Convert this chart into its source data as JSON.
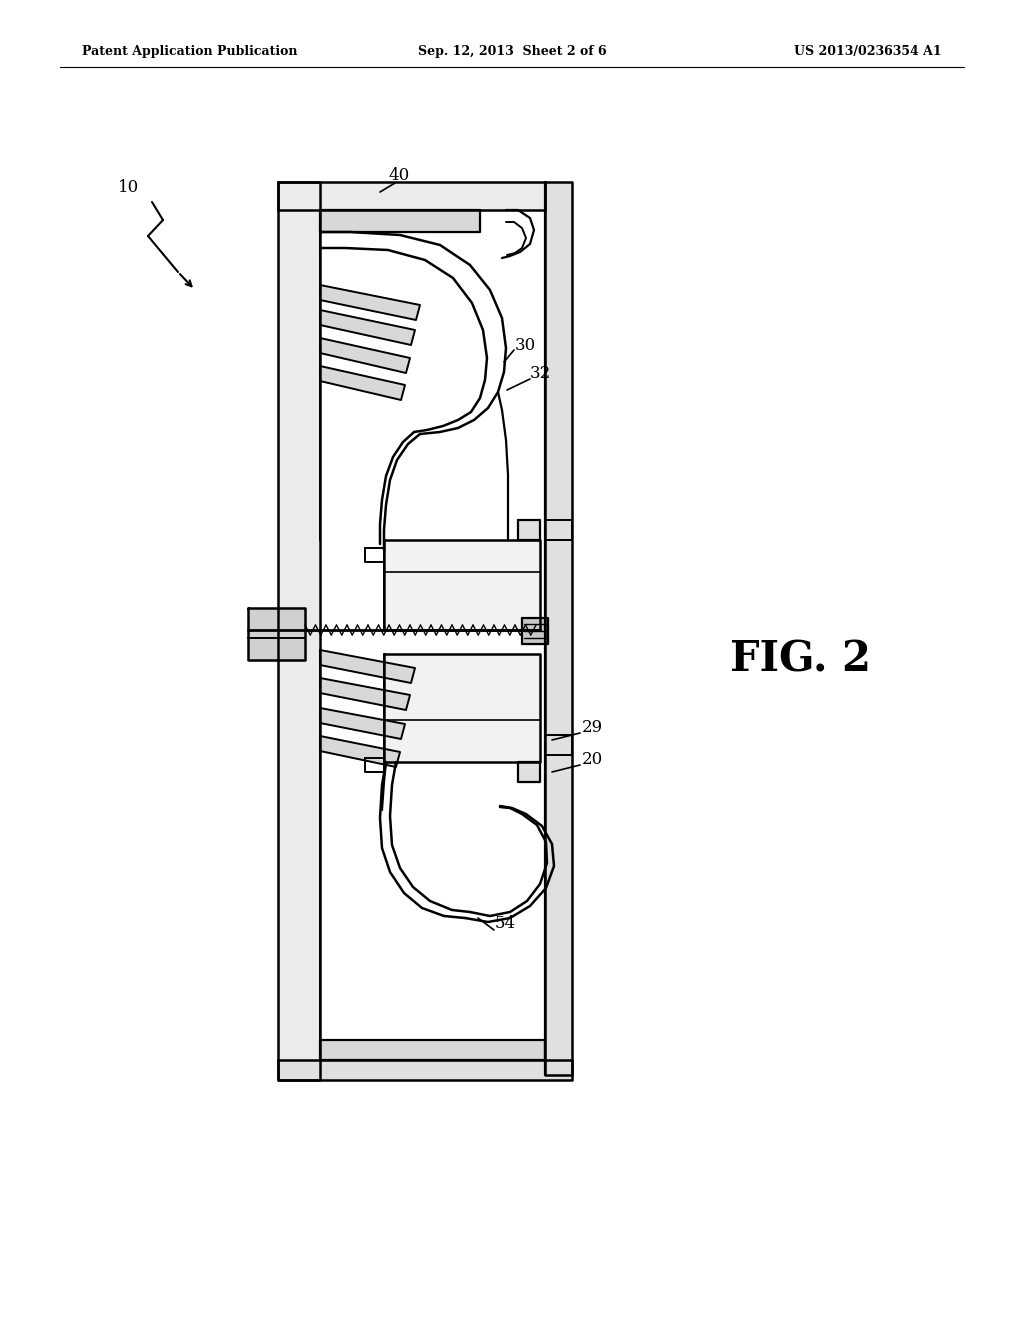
{
  "header_left": "Patent Application Publication",
  "header_mid": "Sep. 12, 2013  Sheet 2 of 6",
  "header_right": "US 2013/0236354 A1",
  "fig_label": "FIG. 2",
  "bg_color": "#ffffff",
  "line_color": "#000000",
  "lw_main": 1.8,
  "lw_thin": 1.2
}
